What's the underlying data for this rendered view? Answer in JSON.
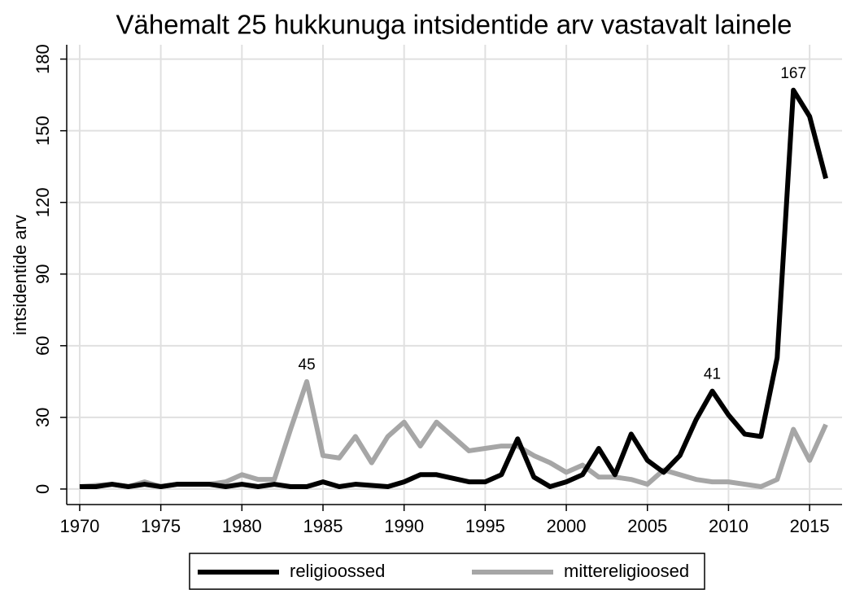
{
  "chart_data": {
    "type": "line",
    "title": "Vähemalt 25 hukkunuga intsidentide arv vastavalt lainele",
    "y_label": "intsidentide arv",
    "x": [
      1970,
      1971,
      1972,
      1973,
      1974,
      1975,
      1976,
      1977,
      1978,
      1979,
      1980,
      1981,
      1982,
      1983,
      1984,
      1985,
      1986,
      1987,
      1988,
      1989,
      1990,
      1991,
      1992,
      1993,
      1994,
      1995,
      1996,
      1997,
      1998,
      1999,
      2000,
      2001,
      2002,
      2003,
      2004,
      2005,
      2006,
      2007,
      2008,
      2009,
      2010,
      2011,
      2012,
      2013,
      2014,
      2015,
      2016
    ],
    "series": [
      {
        "name": "religioossed",
        "color": "#000000",
        "values": [
          1,
          1,
          2,
          1,
          2,
          1,
          2,
          2,
          2,
          1,
          2,
          1,
          2,
          1,
          1,
          3,
          1,
          2,
          1.5,
          1,
          3,
          6,
          6,
          4.5,
          3,
          3,
          6,
          21,
          5,
          1,
          3,
          6,
          17,
          6,
          23,
          12,
          7,
          14,
          29,
          41,
          31,
          23,
          22,
          55,
          167,
          156,
          130
        ]
      },
      {
        "name": "mittereligioosed",
        "color": "#a6a6a6",
        "values": [
          1,
          1.5,
          2,
          1,
          3,
          1,
          2,
          2,
          2,
          3,
          6,
          4,
          4,
          25,
          45,
          14,
          13,
          22,
          11,
          22,
          28,
          18,
          28,
          22,
          16,
          17,
          18,
          18,
          14,
          11,
          7,
          10,
          5,
          5,
          4,
          2,
          8,
          6,
          4,
          3,
          3,
          2,
          1,
          4,
          25,
          12,
          27
        ]
      }
    ],
    "annotations": [
      {
        "text": "45",
        "x": 1984,
        "value": 45
      },
      {
        "text": "41",
        "x": 2009,
        "value": 41
      },
      {
        "text": "167",
        "x": 2014,
        "value": 167
      }
    ],
    "xlim": [
      1969.2,
      2017
    ],
    "xticks": [
      1970,
      1975,
      1980,
      1985,
      1990,
      1995,
      2000,
      2005,
      2010,
      2015
    ],
    "ylim": [
      -6.5,
      186
    ],
    "yticks": [
      0,
      30,
      60,
      90,
      120,
      150,
      180
    ],
    "grid": true
  }
}
